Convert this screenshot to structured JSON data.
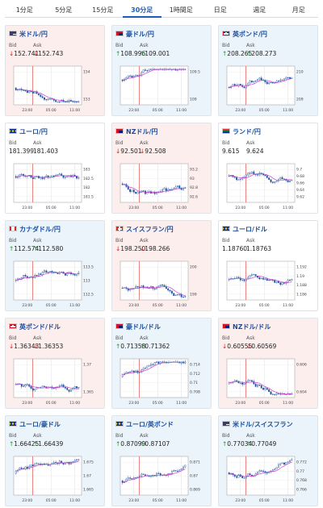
{
  "tabs": [
    {
      "label": "1分足",
      "active": false
    },
    {
      "label": "5分足",
      "active": false
    },
    {
      "label": "15分足",
      "active": false
    },
    {
      "label": "30分足",
      "active": true
    },
    {
      "label": "1時間足",
      "active": false
    },
    {
      "label": "日足",
      "active": false
    },
    {
      "label": "週足",
      "active": false
    },
    {
      "label": "月足",
      "active": false
    }
  ],
  "colors": {
    "up": "#2a8a3a",
    "down": "#d02020",
    "accent": "#1a5fb4",
    "ma_line": "#d040d0"
  },
  "labels": {
    "bid": "Bid",
    "ask": "Ask"
  },
  "cards": [
    {
      "pair": "米ドル/円",
      "flag": "us-flag-icon",
      "direction": "down",
      "bid": "152.741",
      "ask": "152.743",
      "chart_data": {
        "type": "candlestick",
        "x_ticks": [
          "23:00",
          "05:00",
          "11:00"
        ],
        "y_ticks": [
          "154",
          "153"
        ]
      }
    },
    {
      "pair": "豪ドル/円",
      "flag": "au-flag-icon",
      "direction": "up",
      "bid": "108.996",
      "ask": "109.001",
      "chart_data": {
        "type": "candlestick",
        "x_ticks": [
          "23:00",
          "05:00",
          "11:00"
        ],
        "y_ticks": [
          "109.5",
          "109"
        ]
      }
    },
    {
      "pair": "英ポンド/円",
      "flag": "gb-flag-icon",
      "direction": "up",
      "bid": "208.265",
      "ask": "208.273",
      "chart_data": {
        "type": "candlestick",
        "x_ticks": [
          "23:00",
          "05:00",
          "11:00"
        ],
        "y_ticks": [
          "210",
          "209"
        ]
      }
    },
    {
      "pair": "ユーロ/円",
      "flag": "eu-flag-icon",
      "direction": "none",
      "bid": "181.399",
      "ask": "181.403",
      "chart_data": {
        "type": "candlestick",
        "x_ticks": [
          "23:00",
          "05:00",
          "11:00"
        ],
        "y_ticks": [
          "183",
          "182.5",
          "182",
          "181.5"
        ]
      }
    },
    {
      "pair": "NZドル/円",
      "flag": "nz-flag-icon",
      "direction": "down",
      "bid": "92.501",
      "ask": "92.508",
      "chart_data": {
        "type": "candlestick",
        "x_ticks": [
          "23:00",
          "05:00",
          "11:00"
        ],
        "y_ticks": [
          "93.2",
          "93",
          "92.8",
          "92.6"
        ]
      }
    },
    {
      "pair": "ランド/円",
      "flag": "za-flag-icon",
      "direction": "none",
      "bid": "9.615",
      "ask": "9.624",
      "chart_data": {
        "type": "candlestick",
        "x_ticks": [
          "23:00",
          "05:00",
          "11:00"
        ],
        "y_ticks": [
          "9.7",
          "9.68",
          "9.66",
          "9.64",
          "9.62"
        ]
      }
    },
    {
      "pair": "カナダドル/円",
      "flag": "ca-flag-icon",
      "direction": "up",
      "bid": "112.574",
      "ask": "112.580",
      "chart_data": {
        "type": "candlestick",
        "x_ticks": [
          "23:00",
          "05:00",
          "11:00"
        ],
        "y_ticks": [
          "113.5",
          "113",
          "112.5"
        ]
      }
    },
    {
      "pair": "スイスフラン/円",
      "flag": "ch-flag-icon",
      "direction": "down",
      "bid": "198.250",
      "ask": "198.266",
      "chart_data": {
        "type": "candlestick",
        "x_ticks": [
          "23:00",
          "05:00",
          "11:00"
        ],
        "y_ticks": [
          "200",
          "199"
        ]
      }
    },
    {
      "pair": "ユーロ/ドル",
      "flag": "eu-us-flag-icon",
      "direction": "none",
      "bid": "1.18760",
      "ask": "1.18763",
      "chart_data": {
        "type": "candlestick",
        "x_ticks": [
          "23:00",
          "05:00",
          "11:00"
        ],
        "y_ticks": [
          "1.192",
          "1.19",
          "1.188",
          "1.186"
        ]
      }
    },
    {
      "pair": "英ポンド/ドル",
      "flag": "gb-us-flag-icon",
      "direction": "down",
      "bid": "1.36343",
      "ask": "1.36353",
      "chart_data": {
        "type": "candlestick",
        "x_ticks": [
          "23:00",
          "05:00",
          "11:00"
        ],
        "y_ticks": [
          "1.37",
          "1.365"
        ]
      }
    },
    {
      "pair": "豪ドル/ドル",
      "flag": "au-us-flag-icon",
      "direction": "up",
      "bid": "0.71358",
      "ask": "0.71362",
      "chart_data": {
        "type": "candlestick",
        "x_ticks": [
          "23:00",
          "05:00",
          "11:00"
        ],
        "y_ticks": [
          "0.714",
          "0.712",
          "0.71",
          "0.708"
        ]
      }
    },
    {
      "pair": "NZドル/ドル",
      "flag": "nz-us-flag-icon",
      "direction": "down",
      "bid": "0.60555",
      "ask": "0.60569",
      "chart_data": {
        "type": "candlestick",
        "x_ticks": [
          "23:00",
          "05:00",
          "11:00"
        ],
        "y_ticks": [
          "0.606",
          "0.604"
        ]
      }
    },
    {
      "pair": "ユーロ/豪ドル",
      "flag": "eu-au-flag-icon",
      "direction": "up",
      "bid": "1.66425",
      "ask": "1.66439",
      "chart_data": {
        "type": "candlestick",
        "x_ticks": [
          "23:00",
          "05:00",
          "11:00"
        ],
        "y_ticks": [
          "1.675",
          "1.67",
          "1.665"
        ]
      }
    },
    {
      "pair": "ユーロ/英ポンド",
      "flag": "eu-gb-flag-icon",
      "direction": "up",
      "bid": "0.87099",
      "ask": "0.87107",
      "chart_data": {
        "type": "candlestick",
        "x_ticks": [
          "23:00",
          "05:00",
          "11:00"
        ],
        "y_ticks": [
          "0.871",
          "0.87",
          "0.869"
        ]
      }
    },
    {
      "pair": "米ドル/スイスフラン",
      "flag": "us-ch-flag-icon",
      "direction": "up",
      "bid": "0.77034",
      "ask": "0.77049",
      "chart_data": {
        "type": "candlestick",
        "x_ticks": [
          "23:00",
          "05:00",
          "11:00"
        ],
        "y_ticks": [
          "0.772",
          "0.77",
          "0.768",
          "0.766"
        ]
      }
    }
  ]
}
